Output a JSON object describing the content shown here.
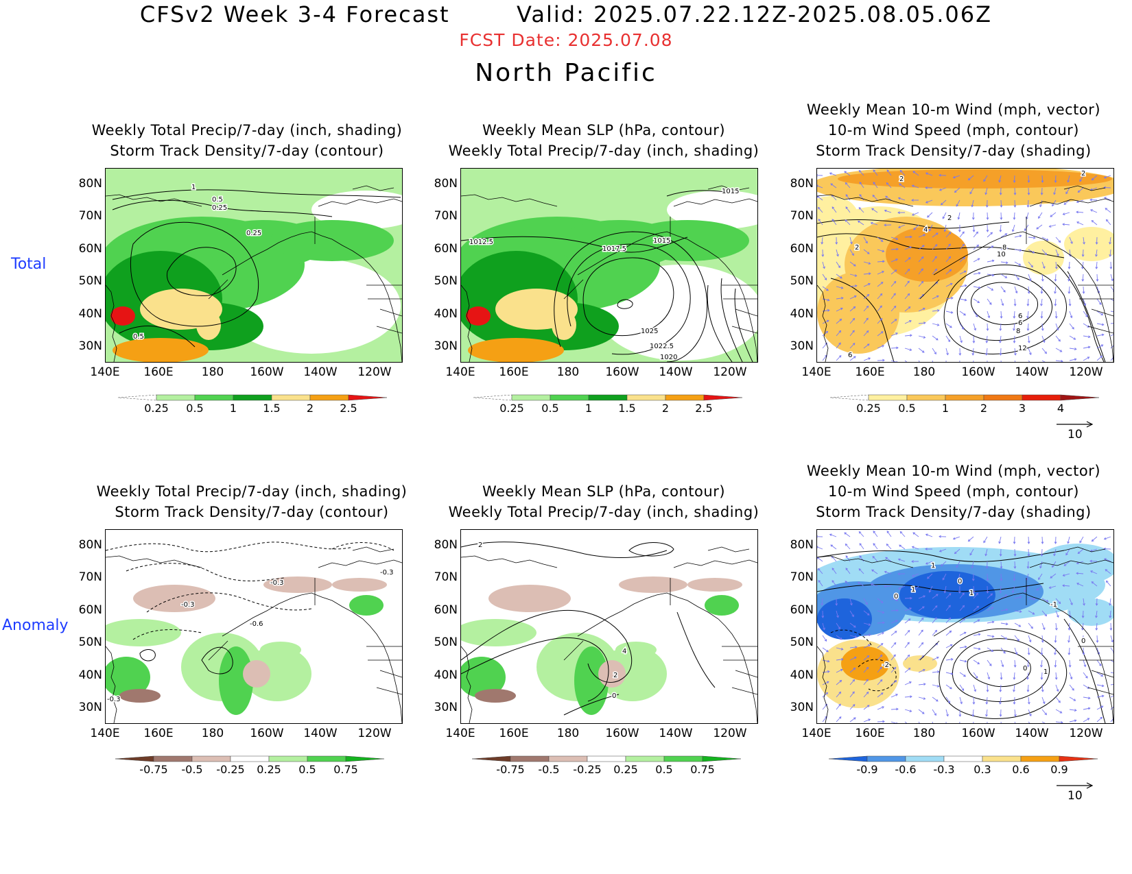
{
  "header": {
    "title": "CFSv2 Week 3-4 Forecast        Valid: 2025.07.22.12Z-2025.08.05.06Z",
    "fcst_date": "FCST Date: 2025.07.08",
    "region": "North Pacific"
  },
  "rows": {
    "total_label": "Total",
    "anomaly_label": "Anomaly"
  },
  "titles": {
    "precip_panel": "Weekly Total Precip/7-day (inch, shading)\nStorm Track Density/7-day (contour)",
    "slp_panel": "Weekly Mean SLP (hPa, contour)\nWeekly Total Precip/7-day (inch, shading)",
    "wind_panel": "Weekly Mean 10-m Wind (mph, vector)\n10-m Wind Speed (mph, contour)\nStorm Track Density/7-day (shading)"
  },
  "axes": {
    "lat_ticks": [
      "80N",
      "70N",
      "60N",
      "50N",
      "40N",
      "30N"
    ],
    "lon_ticks": [
      "140E",
      "160E",
      "180",
      "160W",
      "140W",
      "120W"
    ]
  },
  "colorbars": {
    "precip_total": {
      "labels": [
        "0.25",
        "0.5",
        "1",
        "1.5",
        "2",
        "2.5"
      ],
      "colors": [
        "#ffffff",
        "#b4f0a0",
        "#50d250",
        "#0fa01e",
        "#fae18c",
        "#f5a014",
        "#e61414"
      ]
    },
    "storm_total": {
      "labels": [
        "0.25",
        "0.5",
        "1",
        "2",
        "3",
        "4"
      ],
      "colors": [
        "#ffffff",
        "#fff0a0",
        "#fac85a",
        "#f5a028",
        "#f07814",
        "#e61e0a",
        "#a01414"
      ]
    },
    "precip_anom": {
      "labels": [
        "-0.75",
        "-0.5",
        "-0.25",
        "0.25",
        "0.5",
        "0.75"
      ],
      "colors": [
        "#6e3c28",
        "#a0786e",
        "#dcbeb4",
        "#ffffff",
        "#b4f0a0",
        "#50d250",
        "#14b41e"
      ]
    },
    "storm_anom": {
      "labels": [
        "-0.9",
        "-0.6",
        "-0.3",
        "0.3",
        "0.6",
        "0.9"
      ],
      "colors": [
        "#1e64dc",
        "#5096e6",
        "#a0dcf5",
        "#ffffff",
        "#fae18c",
        "#f5a014",
        "#e63214"
      ]
    }
  },
  "reference_vector": {
    "label": "10"
  },
  "contour_labels": {
    "precip_total": [
      "1",
      "0.5",
      "0.25",
      "0.25",
      "0.5"
    ],
    "slp_total": [
      "1015",
      "1012.5",
      "1017.5",
      "1015",
      "1025",
      "1022.5",
      "1020"
    ],
    "wind_total": [
      "2",
      "2",
      "2",
      "4",
      "2",
      "10",
      "8",
      "6",
      "6",
      "8",
      "12",
      "6"
    ],
    "precip_anom": [
      "-0.3",
      "-0.3",
      "-0.3",
      "-0.6",
      "-0.3"
    ],
    "slp_anom": [
      "2",
      "4",
      "2",
      "0"
    ],
    "wind_anom": [
      "1",
      "1",
      "1",
      "0",
      "0",
      "-2",
      "0",
      "1",
      "0",
      "-1"
    ]
  },
  "colors": {
    "title_red": "#e83030",
    "row_label_blue": "#1e3cff",
    "vector_blue": "#7878f0"
  }
}
